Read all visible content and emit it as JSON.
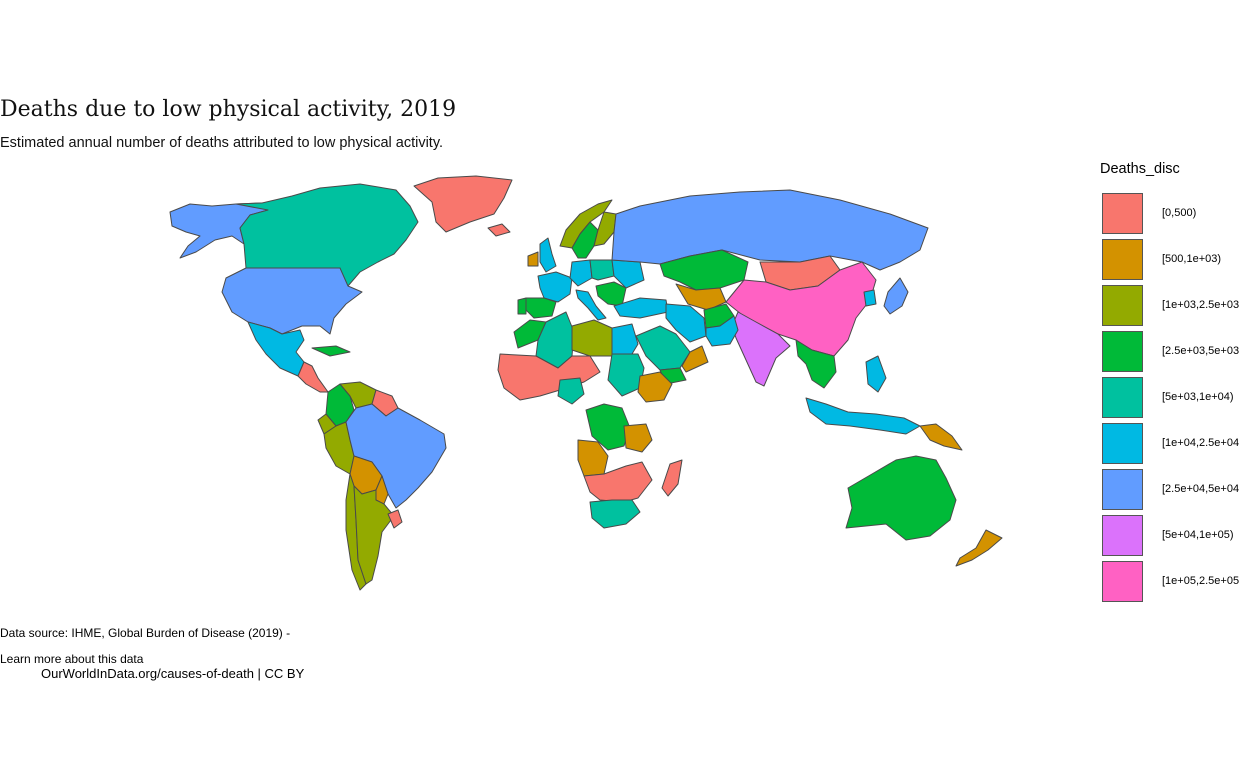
{
  "title": "Deaths due to low physical activity, 2019",
  "subtitle": "Estimated annual number of deaths attributed to low physical activity.",
  "legend": {
    "title": "Deaths_disc",
    "bins": [
      {
        "label": "[0,500)",
        "color": "#F8766D"
      },
      {
        "label": "[500,1e+03)",
        "color": "#D39200"
      },
      {
        "label": "[1e+03,2.5e+03",
        "color": "#93AA00"
      },
      {
        "label": "[2.5e+03,5e+03",
        "color": "#00BA38"
      },
      {
        "label": "[5e+03,1e+04)",
        "color": "#00C19F"
      },
      {
        "label": "[1e+04,2.5e+04",
        "color": "#00B9E3"
      },
      {
        "label": "[2.5e+04,5e+04",
        "color": "#619CFF"
      },
      {
        "label": "[5e+04,1e+05)",
        "color": "#DB72FB"
      },
      {
        "label": "[1e+05,2.5e+05",
        "color": "#FF61C3"
      }
    ]
  },
  "footer": {
    "source": "Data source: IHME, Global Burden of Disease (2019) -",
    "learn_more": "Learn more about this data",
    "credit": "OurWorldInData.org/causes-of-death | CC BY"
  },
  "map_regions": [
    {
      "name": "Alaska",
      "bin": 6
    },
    {
      "name": "Canada",
      "bin": 4
    },
    {
      "name": "Greenland",
      "bin": 0
    },
    {
      "name": "United States",
      "bin": 6
    },
    {
      "name": "Mexico",
      "bin": 5
    },
    {
      "name": "Cuba",
      "bin": 3
    },
    {
      "name": "Central America",
      "bin": 0
    },
    {
      "name": "Colombia",
      "bin": 3
    },
    {
      "name": "Venezuela",
      "bin": 2
    },
    {
      "name": "Guyana region",
      "bin": 0
    },
    {
      "name": "Ecuador",
      "bin": 2
    },
    {
      "name": "Peru",
      "bin": 2
    },
    {
      "name": "Brazil",
      "bin": 6
    },
    {
      "name": "Bolivia",
      "bin": 1
    },
    {
      "name": "Paraguay",
      "bin": 1
    },
    {
      "name": "Chile",
      "bin": 2
    },
    {
      "name": "Argentina",
      "bin": 2
    },
    {
      "name": "Uruguay",
      "bin": 0
    },
    {
      "name": "Iceland",
      "bin": 0
    },
    {
      "name": "United Kingdom",
      "bin": 5
    },
    {
      "name": "Ireland",
      "bin": 1
    },
    {
      "name": "Norway",
      "bin": 2
    },
    {
      "name": "Sweden",
      "bin": 3
    },
    {
      "name": "Finland",
      "bin": 2
    },
    {
      "name": "France",
      "bin": 5
    },
    {
      "name": "Spain",
      "bin": 3
    },
    {
      "name": "Portugal",
      "bin": 3
    },
    {
      "name": "Germany",
      "bin": 5
    },
    {
      "name": "Poland",
      "bin": 4
    },
    {
      "name": "Italy",
      "bin": 5
    },
    {
      "name": "Ukraine",
      "bin": 5
    },
    {
      "name": "Balkans",
      "bin": 3
    },
    {
      "name": "Turkey",
      "bin": 5
    },
    {
      "name": "Russia",
      "bin": 6
    },
    {
      "name": "Kazakhstan",
      "bin": 3
    },
    {
      "name": "Central Asia",
      "bin": 1
    },
    {
      "name": "Mongolia",
      "bin": 0
    },
    {
      "name": "China",
      "bin": 8
    },
    {
      "name": "India",
      "bin": 7
    },
    {
      "name": "Iran",
      "bin": 5
    },
    {
      "name": "Afghanistan",
      "bin": 3
    },
    {
      "name": "Pakistan",
      "bin": 5
    },
    {
      "name": "Saudi Arabia",
      "bin": 4
    },
    {
      "name": "Yemen",
      "bin": 3
    },
    {
      "name": "Oman",
      "bin": 1
    },
    {
      "name": "Japan",
      "bin": 6
    },
    {
      "name": "Korea",
      "bin": 5
    },
    {
      "name": "Southeast Asia",
      "bin": 3
    },
    {
      "name": "Indonesia",
      "bin": 5
    },
    {
      "name": "Philippines",
      "bin": 5
    },
    {
      "name": "Papua New Guinea",
      "bin": 1
    },
    {
      "name": "Australia",
      "bin": 3
    },
    {
      "name": "New Zealand",
      "bin": 1
    },
    {
      "name": "Morocco",
      "bin": 3
    },
    {
      "name": "Algeria",
      "bin": 4
    },
    {
      "name": "Libya",
      "bin": 2
    },
    {
      "name": "Egypt",
      "bin": 5
    },
    {
      "name": "Sudan",
      "bin": 4
    },
    {
      "name": "West Africa",
      "bin": 0
    },
    {
      "name": "Nigeria",
      "bin": 4
    },
    {
      "name": "Ethiopia",
      "bin": 1
    },
    {
      "name": "DR Congo",
      "bin": 3
    },
    {
      "name": "Tanzania",
      "bin": 1
    },
    {
      "name": "Angola",
      "bin": 1
    },
    {
      "name": "Southern Africa",
      "bin": 0
    },
    {
      "name": "South Africa",
      "bin": 4
    },
    {
      "name": "Madagascar",
      "bin": 0
    }
  ]
}
